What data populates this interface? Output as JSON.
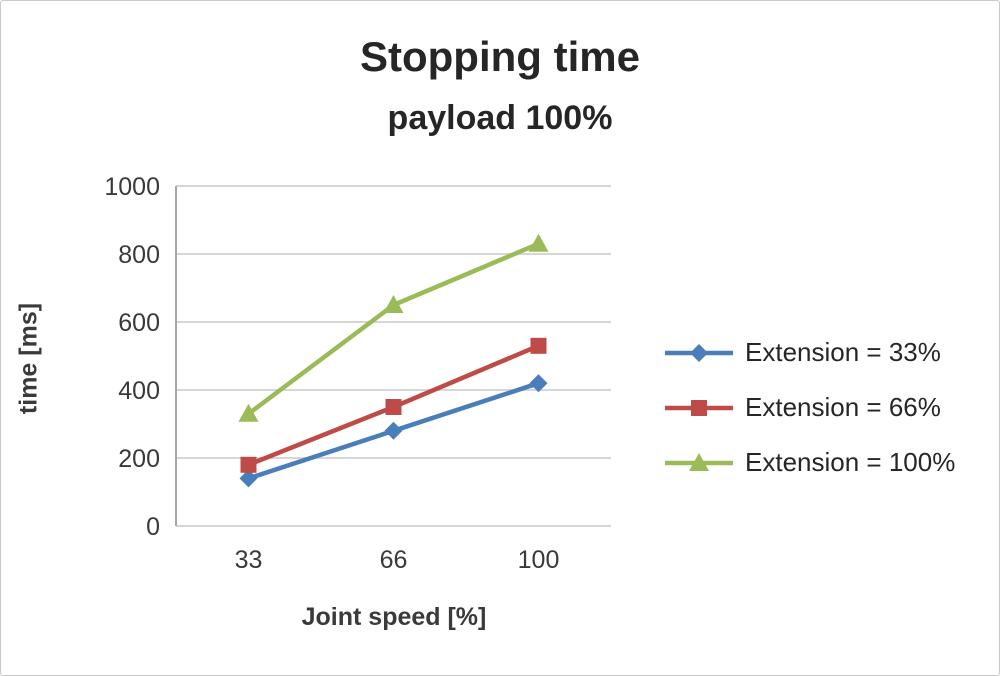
{
  "chart_data": {
    "type": "line",
    "title": "Stopping time",
    "subtitle": "payload 100%",
    "xlabel": "Joint speed [%]",
    "ylabel": "time [ms]",
    "categories": [
      "33",
      "66",
      "100"
    ],
    "ylim": [
      0,
      1000
    ],
    "ytick_step": 200,
    "grid": true,
    "legend_position": "right",
    "series": [
      {
        "name": "Extension = 33%",
        "color": "#4a7ebb",
        "marker": "diamond",
        "values": [
          140,
          280,
          420
        ]
      },
      {
        "name": "Extension = 66%",
        "color": "#be4b48",
        "marker": "square",
        "values": [
          180,
          350,
          530
        ]
      },
      {
        "name": "Extension = 100%",
        "color": "#9bbb59",
        "marker": "triangle",
        "values": [
          330,
          650,
          830
        ]
      }
    ]
  }
}
